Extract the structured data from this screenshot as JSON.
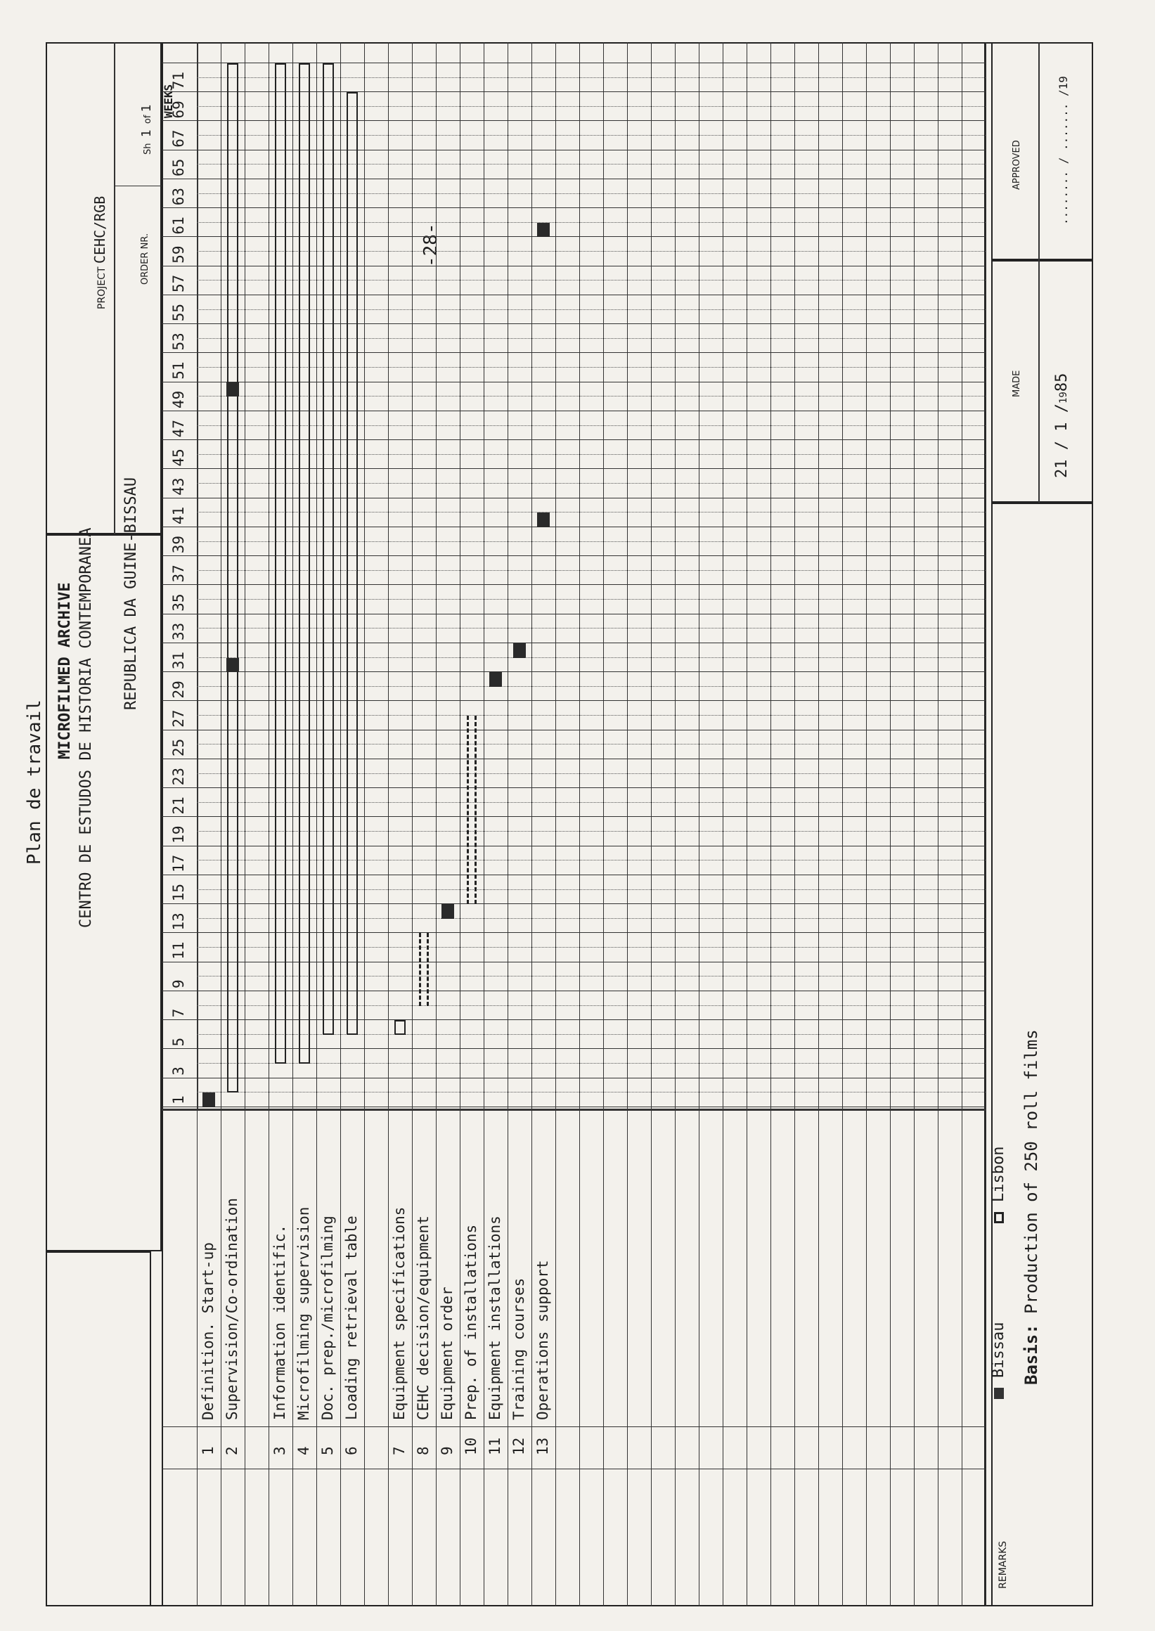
{
  "page_number": "-28-",
  "plan_title": "Plan de travail",
  "header": {
    "doc_title": "MICROFILMED ARCHIVE",
    "institution": "CENTRO DE ESTUDOS DE HISTORIA CONTEMPORANEA",
    "country": "REPUBLICA DA GUINE-BISSAU",
    "project_label": "PROJECT",
    "project_value": "CEHC/RGB",
    "order_label": "ORDER NR.",
    "sheet_label": "Sh",
    "sheet_value": "1",
    "of_label": "of",
    "of_value": "1",
    "weeks_label": "WEEKS"
  },
  "weeks": [
    "1",
    "3",
    "5",
    "7",
    "9",
    "11",
    "13",
    "15",
    "17",
    "19",
    "21",
    "23",
    "25",
    "27",
    "29",
    "31",
    "33",
    "35",
    "37",
    "39",
    "41",
    "43",
    "45",
    "47",
    "49",
    "51",
    "53",
    "55",
    "57",
    "59",
    "61",
    "63",
    "65",
    "67",
    "69",
    "71"
  ],
  "tasks": [
    {
      "row": 0,
      "num": "1",
      "label": "Definition. Start-up"
    },
    {
      "row": 1,
      "num": "2",
      "label": "Supervision/Co-ordination"
    },
    {
      "row": 3,
      "num": "3",
      "label": "Information identific."
    },
    {
      "row": 4,
      "num": "4",
      "label": "Microfilming supervision"
    },
    {
      "row": 5,
      "num": "5",
      "label": "Doc. prep./microfilming"
    },
    {
      "row": 6,
      "num": "6",
      "label": "Loading retrieval table"
    },
    {
      "row": 8,
      "num": "7",
      "label": "Equipment specifications"
    },
    {
      "row": 9,
      "num": "8",
      "label": "CEHC decision/equipment"
    },
    {
      "row": 10,
      "num": "9",
      "label": "Equipment order"
    },
    {
      "row": 11,
      "num": "10",
      "label": "Prep. of installations"
    },
    {
      "row": 12,
      "num": "11",
      "label": "Equipment installations"
    },
    {
      "row": 13,
      "num": "12",
      "label": "Training courses"
    },
    {
      "row": 14,
      "num": "13",
      "label": "Operations support"
    }
  ],
  "chart_data": {
    "type": "gantt",
    "x_unit": "weeks",
    "x_range": [
      0,
      72
    ],
    "bars": [
      {
        "task": "1",
        "kind": "bissau",
        "start": 0,
        "end": 1
      },
      {
        "task": "2",
        "kind": "lisbon",
        "start": 1,
        "end": 72
      },
      {
        "task": "2",
        "kind": "bissau",
        "start": 30,
        "end": 31
      },
      {
        "task": "2",
        "kind": "bissau",
        "start": 49,
        "end": 50
      },
      {
        "task": "3",
        "kind": "lisbon",
        "start": 3,
        "end": 72
      },
      {
        "task": "4",
        "kind": "lisbon",
        "start": 3,
        "end": 72
      },
      {
        "task": "5",
        "kind": "lisbon",
        "start": 5,
        "end": 72
      },
      {
        "task": "6",
        "kind": "lisbon",
        "start": 5,
        "end": 70
      },
      {
        "task": "7",
        "kind": "lisbon",
        "start": 5,
        "end": 6
      },
      {
        "task": "8",
        "kind": "dashed",
        "start": 7,
        "end": 12
      },
      {
        "task": "9",
        "kind": "bissau",
        "start": 13,
        "end": 14
      },
      {
        "task": "10",
        "kind": "dashed",
        "start": 14,
        "end": 27
      },
      {
        "task": "11",
        "kind": "bissau",
        "start": 29,
        "end": 30
      },
      {
        "task": "12",
        "kind": "bissau",
        "start": 31,
        "end": 32
      },
      {
        "task": "13",
        "kind": "bissau",
        "start": 40,
        "end": 41
      },
      {
        "task": "13",
        "kind": "bissau",
        "start": 60,
        "end": 61
      }
    ],
    "legend": [
      {
        "kind": "bissau",
        "label": "Bissau"
      },
      {
        "kind": "lisbon",
        "label": "Lisbon"
      }
    ]
  },
  "footer": {
    "remarks_label": "REMARKS",
    "legend_bissau": "Bissau",
    "legend_lisbon": "Lisbon",
    "basis_label": "Basis:",
    "basis_text": "Production of 250 roll films",
    "made_label": "MADE",
    "made_day": "21",
    "made_month": "1",
    "made_century": "19",
    "made_year": "85",
    "approved_label": "APPROVED",
    "approved_century": "19"
  },
  "colors": {
    "ink": "#1e1e1e",
    "paper": "#f3f1ec"
  }
}
